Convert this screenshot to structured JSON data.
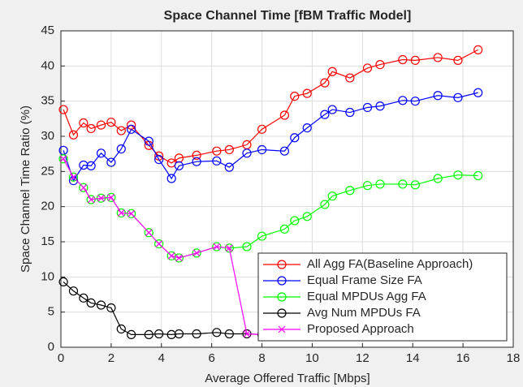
{
  "chart_data": {
    "type": "line",
    "title": "Space Channel Time [fBM Traffic Model]",
    "x_label": "Average Offered Traffic [Mbps]",
    "y_label": "Space Channel Time Ratio (%)",
    "x": [
      0.1,
      0.5,
      0.9,
      1.2,
      1.6,
      2.0,
      2.4,
      2.8,
      3.5,
      3.9,
      4.4,
      4.7,
      5.4,
      6.2,
      6.7,
      7.4,
      8.0,
      8.9,
      9.3,
      9.8,
      10.5,
      10.8,
      11.5,
      12.2,
      12.7,
      13.6,
      14.1,
      15.0,
      15.8,
      16.6
    ],
    "series": [
      {
        "name": "All Agg FA(Baseline Approach)",
        "color": "#ff0000",
        "marker": "o",
        "values": [
          33.8,
          30.2,
          31.9,
          31.1,
          31.6,
          32.0,
          30.8,
          31.6,
          28.7,
          27.2,
          26.2,
          26.9,
          27.3,
          27.9,
          28.1,
          28.8,
          31.0,
          33.0,
          35.7,
          36.1,
          37.6,
          39.2,
          38.3,
          39.7,
          40.2,
          40.9,
          40.8,
          41.2,
          40.8,
          42.3
        ]
      },
      {
        "name": "Equal Frame Size FA",
        "color": "#0000ff",
        "marker": "o",
        "values": [
          28.0,
          23.7,
          25.9,
          25.8,
          27.6,
          26.3,
          28.2,
          31.0,
          29.3,
          26.7,
          24.0,
          25.8,
          26.4,
          26.5,
          25.6,
          27.6,
          28.1,
          27.9,
          29.8,
          31.2,
          33.1,
          33.8,
          33.4,
          34.1,
          34.3,
          35.1,
          35.0,
          35.8,
          35.5,
          36.2
        ]
      },
      {
        "name": "Equal MPDUs Agg FA",
        "color": "#00ff00",
        "marker": "o",
        "values": [
          26.8,
          24.2,
          22.7,
          21.0,
          21.2,
          21.3,
          19.1,
          19.0,
          16.3,
          14.7,
          13.0,
          12.7,
          13.4,
          14.3,
          14.1,
          14.3,
          15.8,
          16.8,
          18.0,
          18.6,
          20.3,
          21.5,
          22.3,
          23.0,
          23.2,
          23.2,
          23.1,
          24.0,
          24.5,
          24.4
        ]
      },
      {
        "name": "Avg Num MPDUs FA",
        "color": "#000000",
        "marker": "o",
        "values": [
          9.3,
          8.0,
          7.0,
          6.3,
          6.0,
          5.6,
          2.6,
          1.8,
          1.8,
          1.9,
          1.8,
          1.9,
          1.9,
          2.1,
          1.9,
          1.9,
          1.8,
          1.9,
          1.8,
          1.8,
          1.8,
          1.8,
          1.8,
          1.7,
          1.8,
          1.7,
          1.7,
          1.7,
          1.7,
          1.9
        ]
      },
      {
        "name": "Proposed Approach",
        "color": "#ff00ff",
        "marker": "x",
        "values": [
          26.8,
          24.2,
          22.7,
          21.0,
          21.2,
          21.3,
          19.1,
          19.0,
          16.3,
          14.7,
          13.0,
          12.7,
          13.4,
          14.3,
          14.1,
          1.9,
          1.8,
          1.9,
          1.8,
          1.8,
          1.8,
          1.8,
          1.8,
          1.7,
          1.8,
          1.7,
          1.7,
          1.7,
          1.7,
          1.9
        ]
      }
    ],
    "xlim": [
      0,
      18
    ],
    "xticks": [
      0,
      2,
      4,
      6,
      8,
      10,
      12,
      14,
      16,
      18
    ],
    "ylim": [
      0,
      45
    ],
    "yticks": [
      0,
      5,
      10,
      15,
      20,
      25,
      30,
      35,
      40,
      45
    ],
    "grid": true,
    "legend": "lower right"
  }
}
